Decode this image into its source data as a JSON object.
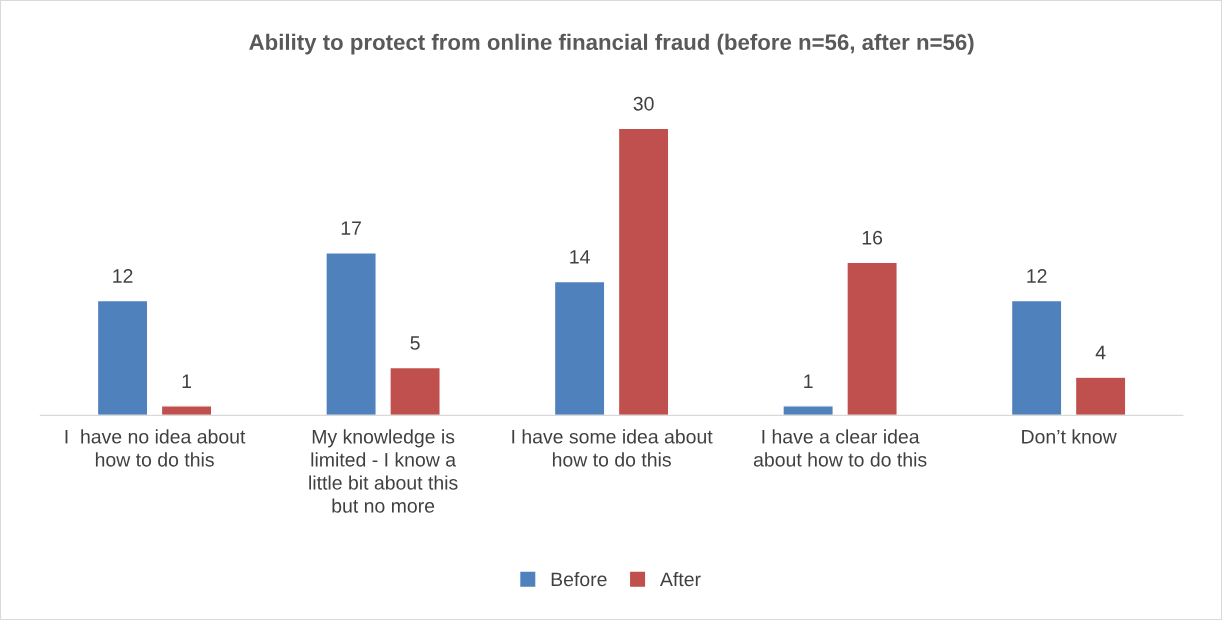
{
  "chart_data": {
    "type": "bar",
    "title": "Ability to protect from online financial fraud (before n=56, after n=56)",
    "categories": [
      "I  have no idea about how to do this",
      "My knowledge is limited - I know a little bit about this but no more",
      "I have some idea about how to do this",
      "I have a clear idea about how to do this",
      "Don’t know"
    ],
    "series": [
      {
        "name": "Before",
        "color": "#4f81bd",
        "values": [
          12,
          17,
          14,
          1,
          12
        ]
      },
      {
        "name": "After",
        "color": "#c0504d",
        "values": [
          1,
          5,
          30,
          16,
          4
        ]
      }
    ],
    "data_labels": true,
    "legend": "bottom"
  }
}
